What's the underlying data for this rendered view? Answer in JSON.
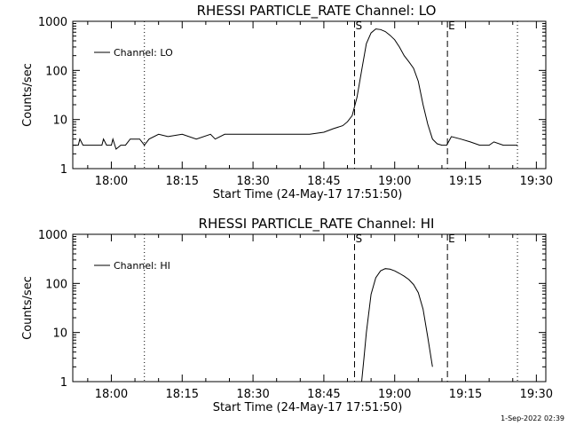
{
  "chart_data": [
    {
      "type": "line",
      "title": "RHESSI PARTICLE_RATE Channel: LO",
      "xlabel": "Start Time (24-May-17 17:51:50)",
      "ylabel": "Counts/sec",
      "yscale": "log",
      "ylim": [
        1,
        1000
      ],
      "xlim": [
        "17:51:50",
        "19:32:00"
      ],
      "grid": false,
      "legend_position": "top-left",
      "x_tick_labels": [
        "18:00",
        "18:15",
        "18:30",
        "18:45",
        "19:00",
        "19:15",
        "19:30"
      ],
      "y_tick_labels": [
        "1",
        "10",
        "100",
        "1000"
      ],
      "markers": [
        {
          "label": "",
          "time": "18:07:00",
          "style": "dotted"
        },
        {
          "label": "S",
          "time": "18:51:30",
          "style": "dashed"
        },
        {
          "label": "E",
          "time": "19:11:10",
          "style": "dashed"
        },
        {
          "label": "",
          "time": "19:26:00",
          "style": "dotted"
        }
      ],
      "series": [
        {
          "name": "Channel: LO",
          "x": [
            "17:52:00",
            "17:53:00",
            "17:53:20",
            "17:54:00",
            "17:56:00",
            "17:58:00",
            "17:58:20",
            "17:59:00",
            "18:00:00",
            "18:00:20",
            "18:01:00",
            "18:02:00",
            "18:03:00",
            "18:04:00",
            "18:05:00",
            "18:06:00",
            "18:07:00",
            "18:08:00",
            "18:10:00",
            "18:12:00",
            "18:15:00",
            "18:18:00",
            "18:21:00",
            "18:22:00",
            "18:24:00",
            "18:27:00",
            "18:30:00",
            "18:33:00",
            "18:36:00",
            "18:39:00",
            "18:42:00",
            "18:45:00",
            "18:47:00",
            "18:49:00",
            "18:50:00",
            "18:51:00",
            "18:52:00",
            "18:53:00",
            "18:54:00",
            "18:55:00",
            "18:56:00",
            "18:57:00",
            "18:58:00",
            "18:59:00",
            "19:00:00",
            "19:01:00",
            "19:02:00",
            "19:03:00",
            "19:04:00",
            "19:05:00",
            "19:06:00",
            "19:07:00",
            "19:08:00",
            "19:09:00",
            "19:10:00",
            "19:11:00",
            "19:12:00",
            "19:14:00",
            "19:16:00",
            "19:18:00",
            "19:20:00",
            "19:21:00",
            "19:23:00",
            "19:26:00"
          ],
          "values": [
            3,
            3,
            4,
            3,
            3,
            3,
            4,
            3,
            3,
            4,
            2.5,
            3,
            3,
            4,
            4,
            4,
            3,
            4,
            5,
            4.5,
            5,
            4,
            5,
            4,
            5,
            5,
            5,
            5,
            5,
            5,
            5,
            5.5,
            6.5,
            7.5,
            9,
            12,
            28,
            100,
            350,
            580,
            700,
            680,
            620,
            520,
            420,
            300,
            200,
            150,
            110,
            60,
            20,
            8,
            4,
            3.2,
            3,
            3,
            4.5,
            4,
            3.5,
            3,
            3,
            3.5,
            3,
            3
          ]
        }
      ]
    },
    {
      "type": "line",
      "title": "RHESSI PARTICLE_RATE Channel: HI",
      "xlabel": "Start Time (24-May-17 17:51:50)",
      "ylabel": "Counts/sec",
      "yscale": "log",
      "ylim": [
        1,
        1000
      ],
      "xlim": [
        "17:51:50",
        "19:32:00"
      ],
      "grid": false,
      "legend_position": "top-left",
      "x_tick_labels": [
        "18:00",
        "18:15",
        "18:30",
        "18:45",
        "19:00",
        "19:15",
        "19:30"
      ],
      "y_tick_labels": [
        "1",
        "10",
        "100",
        "1000"
      ],
      "markers": [
        {
          "label": "",
          "time": "18:07:00",
          "style": "dotted"
        },
        {
          "label": "S",
          "time": "18:51:30",
          "style": "dashed"
        },
        {
          "label": "E",
          "time": "19:11:10",
          "style": "dashed"
        },
        {
          "label": "",
          "time": "19:26:00",
          "style": "dotted"
        }
      ],
      "series": [
        {
          "name": "Channel: HI",
          "x": [
            "18:53:00",
            "18:53:30",
            "18:54:00",
            "18:55:00",
            "18:56:00",
            "18:57:00",
            "18:58:00",
            "18:59:00",
            "19:00:00",
            "19:01:00",
            "19:02:00",
            "19:03:00",
            "19:04:00",
            "19:05:00",
            "19:06:00",
            "19:07:00",
            "19:08:00"
          ],
          "values": [
            1,
            3,
            10,
            60,
            130,
            180,
            200,
            195,
            180,
            160,
            140,
            120,
            95,
            65,
            30,
            8,
            2
          ]
        }
      ]
    }
  ],
  "timestamp": "1-Sep-2022 02:39"
}
